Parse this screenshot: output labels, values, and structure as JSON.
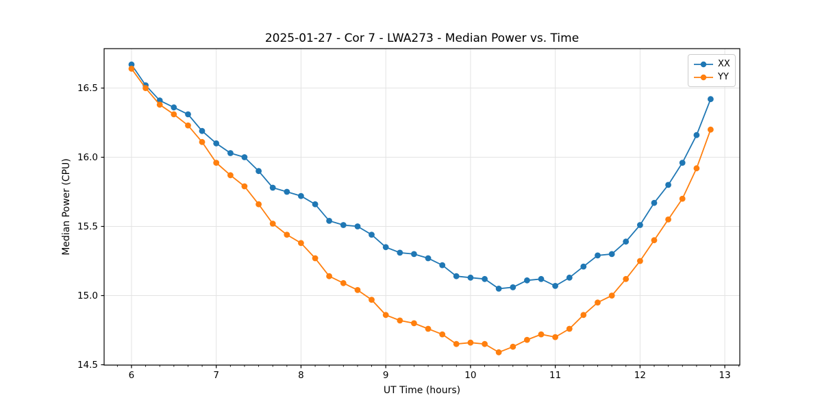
{
  "figure": {
    "background": "#ffffff",
    "axis_color": "#000000",
    "grid_color": "#e3e3e3"
  },
  "chart_data": {
    "type": "line",
    "title": "2025-01-27 - Cor 7 - LWA273 - Median Power vs. Time",
    "xlabel": "UT Time (hours)",
    "ylabel": "Median Power (CPU)",
    "grid": true,
    "legend_position": "upper right",
    "marker": "circle",
    "xlim": [
      5.677,
      13.177
    ],
    "ylim": [
      14.4975,
      16.785
    ],
    "x_ticks": [
      6,
      7,
      8,
      9,
      10,
      11,
      12,
      13
    ],
    "y_ticks": [
      14.5,
      15.0,
      15.5,
      16.0,
      16.5
    ],
    "x_minor_tick_step": 0.16667,
    "x": [
      6.0,
      6.167,
      6.333,
      6.5,
      6.667,
      6.833,
      7.0,
      7.167,
      7.333,
      7.5,
      7.667,
      7.833,
      8.0,
      8.167,
      8.333,
      8.5,
      8.667,
      8.833,
      9.0,
      9.167,
      9.333,
      9.5,
      9.667,
      9.833,
      10.0,
      10.167,
      10.333,
      10.5,
      10.667,
      10.833,
      11.0,
      11.167,
      11.333,
      11.5,
      11.667,
      11.833,
      12.0,
      12.167,
      12.333,
      12.5,
      12.667,
      12.833
    ],
    "series": [
      {
        "name": "XX",
        "color": "#1f77b4",
        "values": [
          16.67,
          16.52,
          16.41,
          16.36,
          16.31,
          16.19,
          16.1,
          16.03,
          16.0,
          15.9,
          15.78,
          15.75,
          15.72,
          15.66,
          15.54,
          15.51,
          15.5,
          15.44,
          15.35,
          15.31,
          15.3,
          15.27,
          15.22,
          15.14,
          15.13,
          15.12,
          15.05,
          15.06,
          15.11,
          15.12,
          15.07,
          15.13,
          15.21,
          15.29,
          15.3,
          15.39,
          15.51,
          15.67,
          15.8,
          15.96,
          16.16,
          16.42
        ]
      },
      {
        "name": "YY",
        "color": "#ff7f0e",
        "values": [
          16.64,
          16.5,
          16.38,
          16.31,
          16.23,
          16.11,
          15.96,
          15.87,
          15.79,
          15.66,
          15.52,
          15.44,
          15.38,
          15.27,
          15.14,
          15.09,
          15.04,
          14.97,
          14.86,
          14.82,
          14.8,
          14.76,
          14.72,
          14.65,
          14.66,
          14.65,
          14.59,
          14.63,
          14.68,
          14.72,
          14.7,
          14.76,
          14.86,
          14.95,
          15.0,
          15.12,
          15.25,
          15.4,
          15.55,
          15.7,
          15.92,
          16.2
        ]
      }
    ]
  }
}
